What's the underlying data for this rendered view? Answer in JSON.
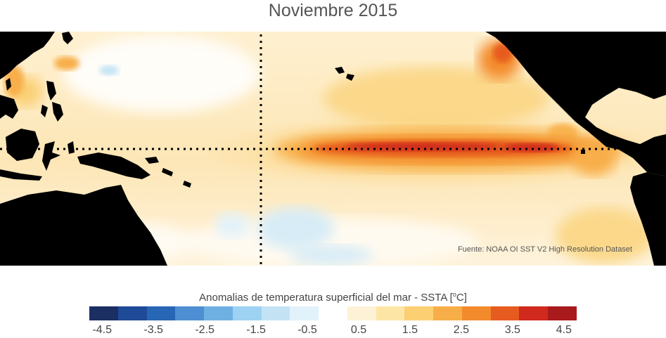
{
  "title": "Noviembre 2015",
  "source": "Fuente: NOAA OI SST V2 High Resolution Dataset",
  "colorbar": {
    "title_text": "Anomalias de temperatura superficial del mar - SSTA  [",
    "title_unit_sup": "o",
    "title_unit_tail": "C]",
    "colors": [
      "#1b2f63",
      "#1f4a97",
      "#2766b5",
      "#4d8fd2",
      "#6fb0e3",
      "#9dd2f2",
      "#c3e3f5",
      "#e2f2fa",
      "#ffffff",
      "#fdf2d6",
      "#fde5a6",
      "#fbcf72",
      "#f8ae48",
      "#f38a2c",
      "#e65b1f",
      "#cf2a1d",
      "#a91a1c"
    ],
    "tick_labels": [
      "-4.5",
      "-3.5",
      "-2.5",
      "-1.5",
      "-0.5",
      "0.5",
      "1.5",
      "2.5",
      "3.5",
      "4.5"
    ],
    "tick_values": [
      -4.5,
      -3.5,
      -2.5,
      -1.5,
      -0.5,
      0.5,
      1.5,
      2.5,
      3.5,
      4.5
    ],
    "range": [
      -4.75,
      4.75
    ]
  }
}
